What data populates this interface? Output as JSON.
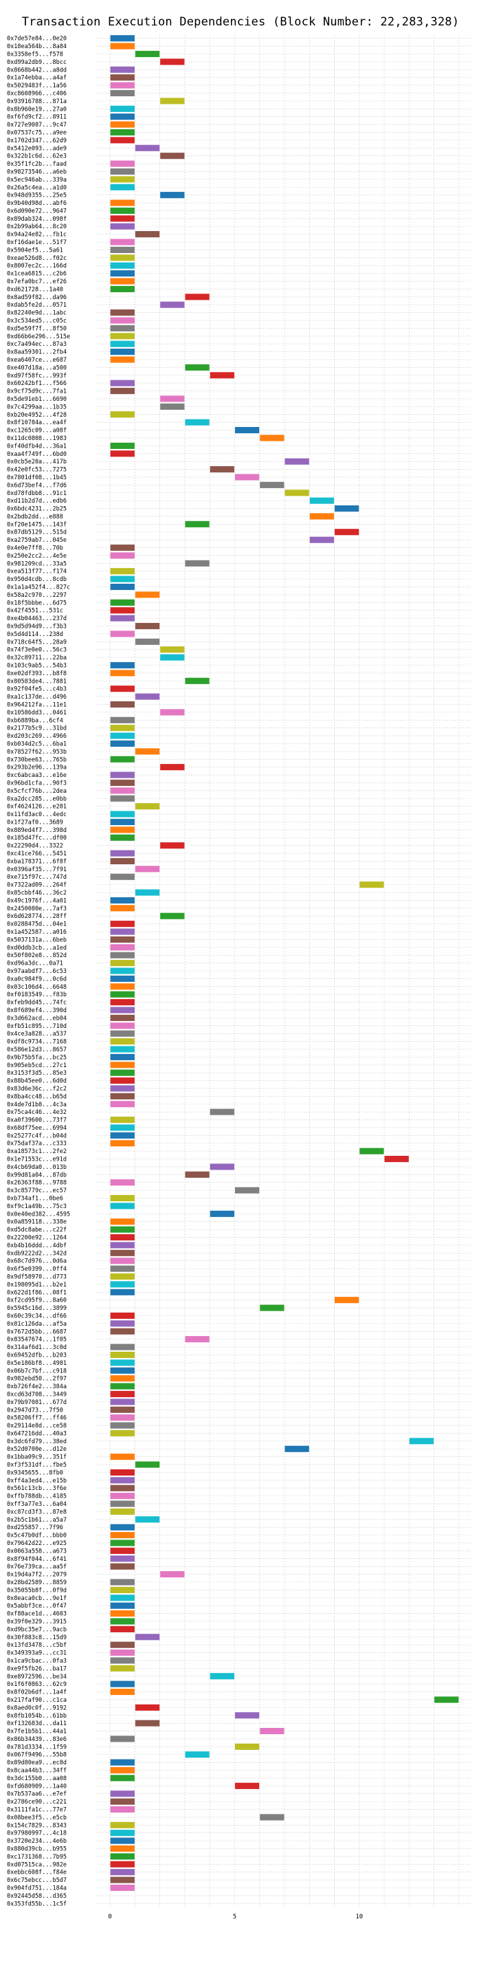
{
  "chart_data": {
    "type": "bar",
    "orientation": "horizontal",
    "title": "Transaction Execution Dependencies (Block Number: 22,283,328)",
    "xlabel": "",
    "ylabel": "",
    "xlim": [
      -0.5,
      14.5
    ],
    "xticks": [
      0,
      5,
      10
    ],
    "grid": true,
    "legend": "none",
    "palette": [
      "#1f77b4",
      "#ff7f0e",
      "#2ca02c",
      "#d62728",
      "#9467bd",
      "#8c564b",
      "#e377c2",
      "#7f7f7f",
      "#bcbd22",
      "#17becf"
    ],
    "categories": [
      "0x7de57e84...0e20",
      "0x18ea564b...8a84",
      "0x3358ef5...f578",
      "0xd99a2db9...8bcc",
      "0x8668b442...a8dd",
      "0x1a74ebba...a4af",
      "0x5029483f...1a56",
      "0xc8608966...c406",
      "0x93916788...871a",
      "0x8b960e19...27a0",
      "0xf6fd9cf2...8911",
      "0x727e9087...9c47",
      "0x07537c75...a9ee",
      "0x1702d347...62d9",
      "0x5412e093...ade9",
      "0x322b1c6d...62e3",
      "0x35f1fc2b...faad",
      "0x98273546...a6eb",
      "0x5ec946ab...339a",
      "0x26a5c4ea...a1d0",
      "0x948d9355...25e5",
      "0x9b40d98d...abf6",
      "0x6d090e72...9647",
      "0x89dab324...098f",
      "0x2b99ab64...8c20",
      "0x94a24e82...fb1c",
      "0xf16dae1e...51f7",
      "0x5904ef5...5a61",
      "0xeae526d8...f02c",
      "0x8007ec2c...166d",
      "0x1cea6815...c2b6",
      "0x7efa0bc7...ef26",
      "0xd621728...1a40",
      "0x8ad59f82...da96",
      "0xdab5fe2d...0571",
      "0x82240e9d...1abc",
      "0x3c534ed5...c05c",
      "0xd5e59f7f...8f50",
      "0xd66b6e296...515e",
      "0xc7a494ec...87a3",
      "0x8aa59301...2fb4",
      "0xea6407ce...e687",
      "0xe407d18a...a500",
      "0xd97f58fc...993f",
      "0x60242bf1...f566",
      "0x9cf75d9c...7fa1",
      "0x5de91eb1...6690",
      "0x7c4299aa...1b35",
      "0xb20e4952...4f28",
      "0x8f10784a...ea4f",
      "0xc1265c09...a08f",
      "0x11dc0808...1983",
      "0xf40dfb4d...36a1",
      "0xaa4f749f...6bd0",
      "0x0cb5e20a...417b",
      "0x42e0fc53...7275",
      "0x7801df08...1b45",
      "0x6d73bef4...f7d6",
      "0xd78fdbb8...91c1",
      "0xd11b2d7d...edb6",
      "0x6bdc4231...2b25",
      "0x2bdb2dd...e888",
      "0xf20e1475...143f",
      "0x87db5129...515d",
      "0xa2759ab7...045e",
      "0x4e0e7ff8...70b",
      "0x250e2cc2...4e5e",
      "0x981209cd...33a5",
      "0xea513f77...f174",
      "0x950d4cdb...8cdb",
      "0x1a1a452f4...827c",
      "0x58a2c970...2297",
      "0x18f5bbbe...6d75",
      "0x42f4551...531c",
      "0xe4b04463...237d",
      "0x9d5d94d9...f3b3",
      "0x5d4d114...238d",
      "0x718c64f5...28a9",
      "0x74f3e0e0...56c3",
      "0x32c89711...22ba",
      "0x103c9ab5...54b3",
      "0xe02df393...b8f8",
      "0x80583de4...7881",
      "0x92f04fe5...c4b3",
      "0xa1c137de...d496",
      "0x964212fa...11e1",
      "0x10586dd3...0461",
      "0xb6889ba...6cf4",
      "0x2177b5c9...31bd",
      "0xd203c269...4966",
      "0xb034d2c5...6ba1",
      "0x78527f62...953b",
      "0x730bee63...765b",
      "0x293b2e96...139a",
      "0xc6abcaa3...e16e",
      "0x96bd1cfa...90f3",
      "0x5cfcf76b...2dea",
      "0xa2dcc285...e0bb",
      "0xf4624126...e281",
      "0x11fd3ac0...4edc",
      "0x1f27af0...3689",
      "0x889ed4f7...398d",
      "0x185d47fc...df00",
      "0x22290d4...3322",
      "0xc41ce766...5451",
      "0xba178371...6f8f",
      "0x0396af35...7f91",
      "0xe715f97c...747d",
      "0x7322ad09...264f",
      "0x85cbbf46...36c2",
      "0x49c1976f...4a01",
      "0x2450080e...7af3",
      "0x6d628774...28ff",
      "0x0288475d...04e1",
      "0x1a452587...a016",
      "0x5037131a...6beb",
      "0xd0ddb3cb...a1ed",
      "0x50f802e8...852d",
      "0xd96a3dc...0a71",
      "0x97aabdf7...6c53",
      "0xa0c984f9...0c6d",
      "0x03c106d4...6648",
      "0xf0183549...f83b",
      "0xfeb9dd45...74fc",
      "0x8f689ef4...390d",
      "0x3d662acd...eb04",
      "0xfb51c895...710d",
      "0x4ce3a828...a537",
      "0xdf8c9734...7168",
      "0x586e12d3...8657",
      "0x9b75b5fa...bc25",
      "0x905eb5cd...27c1",
      "0x3153f3d5...85e3",
      "0x88b45ee0...6d0d",
      "0x83d6e36c...f2c2",
      "0x8ba4cc48...b65d",
      "0x4de7d1b8...4c3a",
      "0x75ca4c46...4e32",
      "0xa0f39600...73f7",
      "0x68df75ee...6994",
      "0x25277c4f...b04d",
      "0x75daf37a...c333",
      "0xa18573c1...2fe2",
      "0x1e71553c...e91d",
      "0x4cb69da0...013b",
      "0x99d81a04...87db",
      "0x26363f88...9788",
      "0x3c85779c...ec57",
      "0xb734af1...0be6",
      "0xf9c1a49b...75c3",
      "0x0e40ed382...4595",
      "0x0a859118...338e",
      "0xd5dc8abe...c22f",
      "0x22200e92...1264",
      "0xb4b16ddd...4dbf",
      "0xdb9222d2...342d",
      "0x68c7d976...0d6a",
      "0x6f5e0399...0ff4",
      "0x9df58970...d773",
      "0x198095d1...b2e1",
      "0x622d1f86...08f1",
      "0xf2cd95f9...8a60",
      "0x5945c16d...3899",
      "0x60c39c34...df66",
      "0x81c126da...af5a",
      "0x7672d5bb...6687",
      "0x83547674...1f05",
      "0x314af6d1...3c0d",
      "0x69452dfb...b203",
      "0x5e186bf8...4981",
      "0x06b7c7bf...c918",
      "0x982ebd50...2f97",
      "0xb726f4e2...384a",
      "0xcd63d708...3449",
      "0x79b97081...677d",
      "0x2947d73...7f50",
      "0x58206ff7...ff46",
      "0x29114e8d...ce58",
      "0x647216dd...40a3",
      "0x3dc6fd79...38ed",
      "0x52d0700e...d12e",
      "0x1bba09c9...351f",
      "0xf3f531df...fbe5",
      "0x9345655...8fb0",
      "0xff4a3ed4...e15b",
      "0x561c13cb...3f6e",
      "0xffb788db...4185",
      "0xff3a77e3...6a04",
      "0xc87cd3f3...87e8",
      "0x2b5c1b61...a5a7",
      "0xd255857...7f96",
      "0x5c47b0df...bbb0",
      "0x79642d22...e925",
      "0x0063a558...a673",
      "0x8f94f044...6f41",
      "0x76e739ca...aa5f",
      "0x19d4a7f2...2079",
      "0x28bd2589...8859",
      "0x35055b8f...0f9d",
      "0x8eaca0cb...9e1f",
      "0x5abbf3ce...0f47",
      "0xf88ace1d...4603",
      "0x39f0e329...3915",
      "0xd9bc35e7...9acb",
      "0x30f883c8...15d9",
      "0x13fd3478...c5bf",
      "0x349393a9...cc31",
      "0x1ca9cbac...0fa3",
      "0xe9f5fb26...ba17",
      "0xe8972596...be34",
      "0x1f6f0863...62c9",
      "0x8f02b6df...1a4f",
      "0x217faf90...c1ca",
      "0x8aed0c0f...9192",
      "0x8fb1054b...61bb",
      "0xf132683d...da11",
      "0x7fe1b5b1...44a1",
      "0x86b34439...83e6",
      "0x781d3334...1f59",
      "0x067f9496...55b8",
      "0x89d80ea9...ec8d",
      "0x8caa44b3...34ff",
      "0x3dc155b0...aa08",
      "0xfd680909...1a40",
      "0x7b537aa6...e7ef",
      "0x2786ce90...c221",
      "0x3111fa1c...77e7",
      "0x08bee3f5...e5cb",
      "0x154c7829...8343",
      "0x97980997...4c18",
      "0x3720e234...4e6b",
      "0x880d39cb...b955",
      "0xc1731368...7b95",
      "0xd07515ca...982e",
      "0xebbc608f...f84e",
      "0x6c75ebcc...b5d7",
      "0x904fd751...184a",
      "0x92445d58...d365",
      "0x353fd55b...1c5f"
    ],
    "start": [
      0,
      0,
      1,
      2,
      0,
      0,
      0,
      0,
      2,
      0,
      0,
      0,
      0,
      0,
      1,
      2,
      0,
      0,
      0,
      0,
      2,
      0,
      0,
      0,
      0,
      1,
      0,
      0,
      0,
      0,
      0,
      0,
      0,
      3,
      2,
      0,
      0,
      0,
      0,
      0,
      0,
      0,
      3,
      4,
      0,
      0,
      2,
      2,
      0,
      3,
      5,
      6,
      0,
      0,
      7,
      4,
      5,
      6,
      7,
      8,
      9,
      8,
      3,
      9,
      8,
      0,
      0,
      3,
      0,
      0,
      0,
      1,
      0,
      0,
      0,
      1,
      0,
      1,
      2,
      2,
      0,
      0,
      3,
      0,
      1,
      0,
      2,
      0,
      0,
      0,
      0,
      1,
      0,
      2,
      0,
      0,
      0,
      0,
      1,
      0,
      0,
      0,
      0,
      2,
      0,
      0,
      1,
      0,
      10,
      1,
      0,
      0,
      2,
      0,
      0,
      0,
      0,
      0,
      0,
      0,
      0,
      0,
      0,
      0,
      0,
      0,
      0,
      0,
      0,
      0,
      0,
      0,
      0,
      0,
      0,
      0,
      0,
      4,
      0,
      0,
      0,
      0,
      10,
      11,
      4,
      3,
      0,
      5,
      0,
      0,
      4,
      0,
      0,
      0,
      0,
      0,
      0,
      0,
      0,
      0,
      0,
      9,
      6,
      0,
      0,
      0,
      3,
      0,
      0,
      0,
      0,
      0,
      0,
      0,
      0,
      0,
      0,
      0,
      0,
      12,
      7,
      0,
      1,
      0,
      0,
      0,
      0,
      0,
      0,
      1,
      0,
      0,
      0,
      0,
      0,
      0,
      2,
      0,
      0,
      0,
      0,
      0,
      0,
      0,
      1,
      0,
      0,
      0,
      0,
      4,
      0,
      0,
      13,
      1,
      5,
      1,
      6,
      0,
      5,
      3,
      0,
      0,
      0,
      5,
      0,
      0,
      0,
      6,
      0,
      0,
      0,
      0,
      0,
      0,
      0,
      0,
      0
    ],
    "duration": 1
  }
}
